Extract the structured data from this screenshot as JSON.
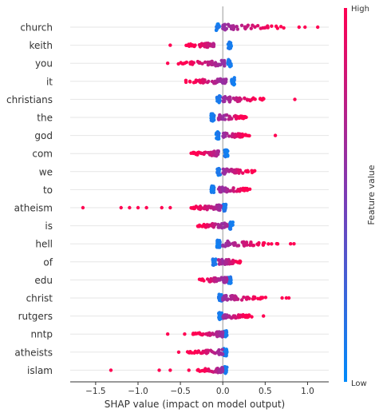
{
  "chart_data": {
    "type": "scatter",
    "subtype": "shap-beeswarm",
    "title": "",
    "xlabel": "SHAP value (impact on model output)",
    "ylabel": "",
    "xlim": [
      -1.8,
      1.25
    ],
    "x_ticks": [
      "−1.5",
      "−1.0",
      "−0.5",
      "0.0",
      "0.5",
      "1.0"
    ],
    "x_tick_values": [
      -1.5,
      -1.0,
      -0.5,
      0.0,
      0.5,
      1.0
    ],
    "grid": "horizontal lines per feature",
    "legend_position": "right",
    "colorbar": {
      "label": "Feature value",
      "high_label": "High",
      "low_label": "Low",
      "high_color": "#ff0052",
      "low_color": "#008bfb"
    },
    "features": [
      {
        "name": "church",
        "low_value": -0.06,
        "high_min": 0.0,
        "high_max": 0.8,
        "high_outliers": [
          0.9,
          0.97,
          1.12
        ]
      },
      {
        "name": "keith",
        "low_value": 0.08,
        "high_min": -0.45,
        "high_max": -0.1,
        "high_outliers": [
          -0.62
        ]
      },
      {
        "name": "you",
        "low_value": 0.08,
        "high_min": -0.55,
        "high_max": 0.02,
        "high_outliers": [
          -0.65
        ]
      },
      {
        "name": "it",
        "low_value": 0.12,
        "high_min": -0.45,
        "high_max": 0.05,
        "high_outliers": []
      },
      {
        "name": "christians",
        "low_value": -0.05,
        "high_min": 0.0,
        "high_max": 0.5,
        "high_outliers": [
          0.85
        ]
      },
      {
        "name": "the",
        "low_value": -0.12,
        "high_min": -0.05,
        "high_max": 0.28,
        "high_outliers": []
      },
      {
        "name": "god",
        "low_value": -0.06,
        "high_min": 0.0,
        "high_max": 0.32,
        "high_outliers": [
          0.62
        ]
      },
      {
        "name": "com",
        "low_value": 0.04,
        "high_min": -0.38,
        "high_max": -0.05,
        "high_outliers": []
      },
      {
        "name": "we",
        "low_value": -0.05,
        "high_min": 0.0,
        "high_max": 0.38,
        "high_outliers": []
      },
      {
        "name": "to",
        "low_value": -0.12,
        "high_min": -0.05,
        "high_max": 0.32,
        "high_outliers": []
      },
      {
        "name": "atheism",
        "low_value": 0.02,
        "high_min": -0.45,
        "high_max": -0.02,
        "high_outliers": [
          -1.65,
          -1.2,
          -1.1,
          -1.0,
          -0.9,
          -0.72,
          -0.62
        ]
      },
      {
        "name": "is",
        "low_value": 0.1,
        "high_min": -0.3,
        "high_max": 0.05,
        "high_outliers": []
      },
      {
        "name": "hell",
        "low_value": -0.05,
        "high_min": 0.0,
        "high_max": 0.65,
        "high_outliers": [
          0.8,
          0.84
        ]
      },
      {
        "name": "of",
        "low_value": -0.1,
        "high_min": -0.05,
        "high_max": 0.22,
        "high_outliers": []
      },
      {
        "name": "edu",
        "low_value": 0.08,
        "high_min": -0.3,
        "high_max": 0.05,
        "high_outliers": []
      },
      {
        "name": "christ",
        "low_value": -0.03,
        "high_min": 0.0,
        "high_max": 0.55,
        "high_outliers": [
          0.7,
          0.75,
          0.78
        ]
      },
      {
        "name": "rutgers",
        "low_value": -0.03,
        "high_min": 0.0,
        "high_max": 0.35,
        "high_outliers": [
          0.48
        ]
      },
      {
        "name": "nntp",
        "low_value": 0.03,
        "high_min": -0.38,
        "high_max": 0.0,
        "high_outliers": [
          -0.65,
          -0.45
        ]
      },
      {
        "name": "atheists",
        "low_value": 0.03,
        "high_min": -0.42,
        "high_max": 0.0,
        "high_outliers": [
          -0.52
        ]
      },
      {
        "name": "islam",
        "low_value": 0.03,
        "high_min": -0.3,
        "high_max": 0.0,
        "high_outliers": [
          -1.32,
          -0.75,
          -0.62,
          -0.4
        ]
      }
    ]
  }
}
